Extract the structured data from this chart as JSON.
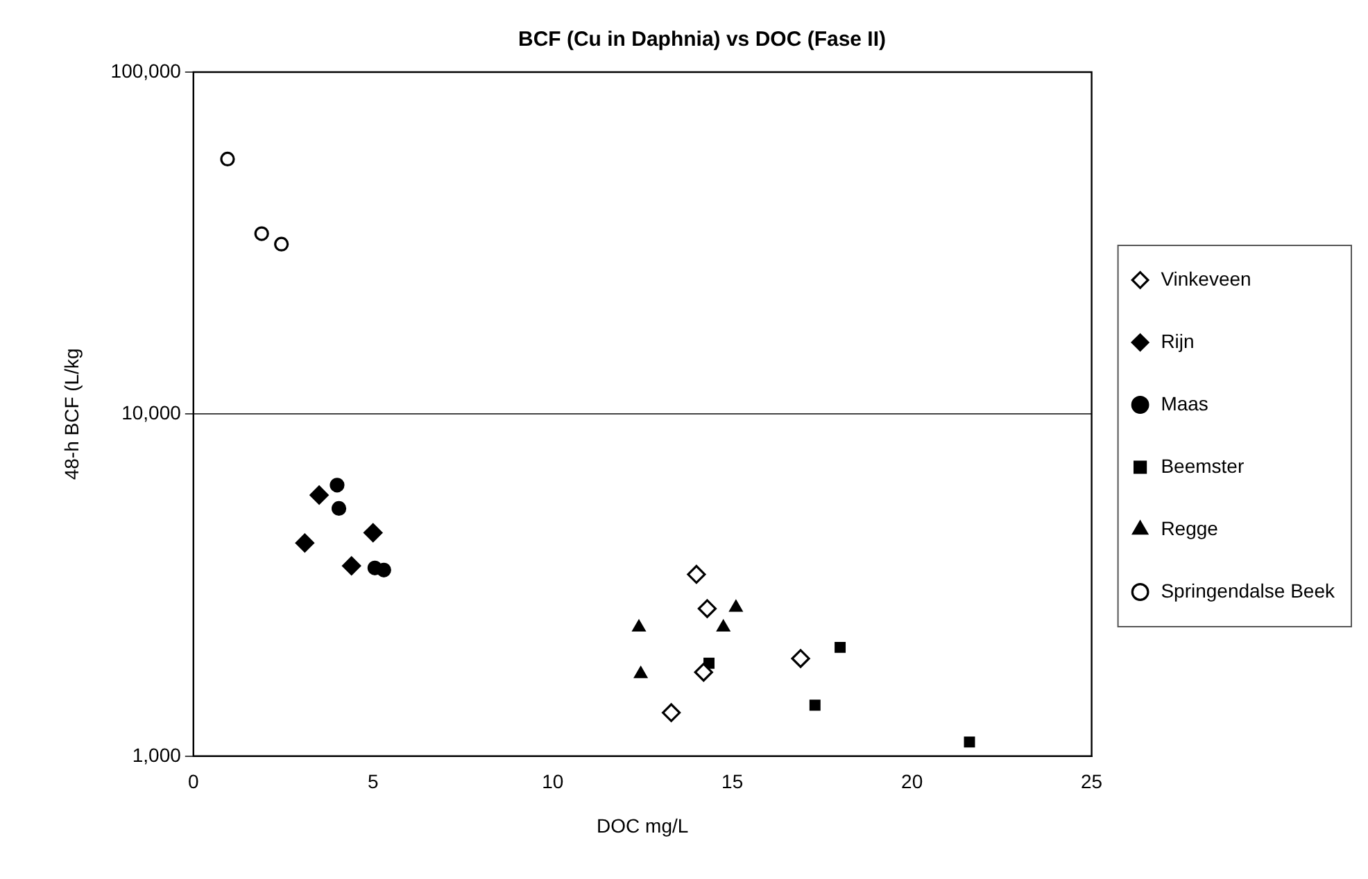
{
  "chart_data": {
    "type": "scatter",
    "title": "BCF (Cu in Daphnia) vs DOC (Fase II)",
    "xlabel": "DOC mg/L",
    "ylabel": "48-h BCF (L/kg",
    "log": "y",
    "grid": "y",
    "legend": "right",
    "xlim": [
      0,
      25
    ],
    "xticks": [
      0,
      5,
      10,
      15,
      20,
      25
    ],
    "ylim": [
      1000,
      100000
    ],
    "yticks": [
      {
        "value": 1000,
        "label": "1,000"
      },
      {
        "value": 10000,
        "label": "10,000"
      },
      {
        "value": 100000,
        "label": "100,000"
      }
    ],
    "series": [
      {
        "name": "Vinkeveen",
        "color": "#ffffff",
        "marker": "diamond",
        "x": [
          14.0,
          14.3,
          16.9,
          13.3,
          14.2
        ],
        "values": [
          3400,
          2700,
          1930,
          1340,
          1760
        ]
      },
      {
        "name": "Rijn",
        "color": "#000000",
        "marker": "diamond",
        "x": [
          3.5,
          3.1,
          5.0,
          4.4
        ],
        "values": [
          5800,
          4200,
          4500,
          3600
        ]
      },
      {
        "name": "Maas",
        "color": "#000000",
        "marker": "circle",
        "x": [
          4.0,
          4.05,
          5.05,
          5.3
        ],
        "values": [
          6200,
          5300,
          3550,
          3500
        ]
      },
      {
        "name": "Beemster",
        "color": "#000000",
        "marker": "square",
        "x": [
          14.35,
          18.0,
          17.3,
          21.6
        ],
        "values": [
          1870,
          2080,
          1410,
          1100
        ]
      },
      {
        "name": "Regge",
        "color": "#000000",
        "marker": "triangle",
        "x": [
          12.4,
          12.45,
          15.1,
          14.75
        ],
        "values": [
          2380,
          1740,
          2720,
          2380
        ]
      },
      {
        "name": "Springendalse Beek",
        "color": "#ffffff",
        "marker": "circle",
        "x": [
          0.95,
          1.9,
          2.45
        ],
        "values": [
          55700,
          33700,
          31400
        ]
      }
    ]
  }
}
